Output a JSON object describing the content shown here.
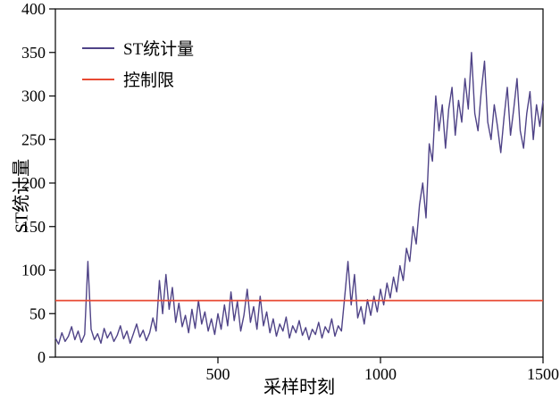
{
  "chart_data": {
    "type": "line",
    "title": "",
    "xlabel": "采样时刻",
    "ylabel": "ST统计量",
    "xlim": [
      0,
      1500
    ],
    "ylim": [
      0,
      400
    ],
    "x_ticks": [
      500,
      1000,
      1500
    ],
    "y_ticks": [
      0,
      50,
      100,
      150,
      200,
      250,
      300,
      350,
      400
    ],
    "grid": false,
    "legend_position": "top-left",
    "x_start": 0,
    "x_step": 10,
    "series": [
      {
        "name": "ST统计量",
        "values": [
          22,
          15,
          28,
          18,
          24,
          35,
          20,
          30,
          17,
          26,
          110,
          32,
          20,
          27,
          16,
          33,
          22,
          29,
          18,
          25,
          36,
          21,
          30,
          16,
          27,
          38,
          23,
          31,
          19,
          28,
          45,
          30,
          88,
          50,
          95,
          55,
          80,
          40,
          62,
          35,
          48,
          28,
          55,
          33,
          65,
          38,
          52,
          30,
          44,
          26,
          50,
          32,
          60,
          36,
          75,
          42,
          64,
          30,
          48,
          78,
          40,
          58,
          32,
          70,
          36,
          52,
          28,
          44,
          24,
          38,
          30,
          46,
          22,
          36,
          28,
          42,
          25,
          34,
          20,
          32,
          26,
          40,
          22,
          35,
          28,
          44,
          24,
          36,
          30,
          70,
          110,
          60,
          95,
          45,
          58,
          38,
          66,
          48,
          70,
          52,
          78,
          60,
          85,
          68,
          92,
          75,
          105,
          88,
          125,
          110,
          150,
          130,
          175,
          200,
          160,
          245,
          225,
          300,
          260,
          290,
          240,
          285,
          310,
          255,
          295,
          270,
          320,
          285,
          350,
          280,
          260,
          305,
          340,
          270,
          250,
          290,
          265,
          235,
          275,
          310,
          255,
          285,
          320,
          260,
          240,
          280,
          305,
          250,
          290,
          265,
          295
        ]
      }
    ],
    "control_limit": {
      "name": "控制限",
      "value": 65
    },
    "colors": {
      "series": "#4f4387",
      "control": "#e84a33",
      "axis": "#000000"
    }
  }
}
